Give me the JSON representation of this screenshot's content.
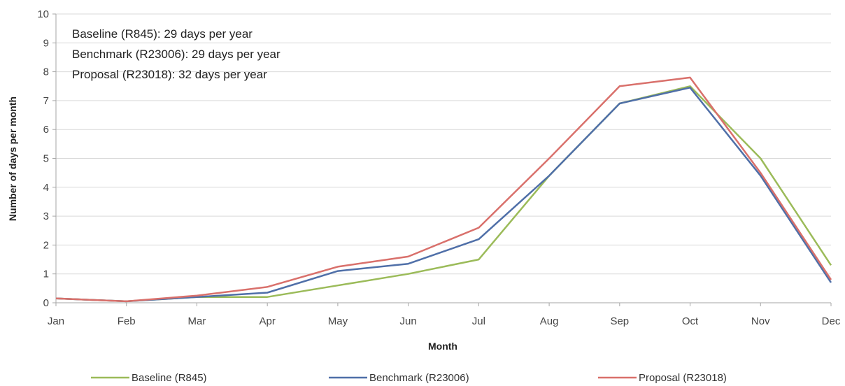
{
  "chart_data": {
    "type": "line",
    "xlabel": "Month",
    "ylabel": "Number of days per month",
    "ylim": [
      0,
      10
    ],
    "yticks": [
      0,
      1,
      2,
      3,
      4,
      5,
      6,
      7,
      8,
      9,
      10
    ],
    "categories": [
      "Jan",
      "Feb",
      "Mar",
      "Apr",
      "May",
      "Jun",
      "Jul",
      "Aug",
      "Sep",
      "Oct",
      "Nov",
      "Dec"
    ],
    "grid": "horizontal",
    "legend_position": "bottom",
    "annotations": [
      "Baseline (R845): 29 days per year",
      "Benchmark (R23006): 29 days per year",
      "Proposal (R23018): 32 days per year"
    ],
    "series": [
      {
        "name": "Baseline (R845)",
        "color": "#9bbb59",
        "values": [
          0.15,
          0.05,
          0.2,
          0.2,
          0.6,
          1.0,
          1.5,
          4.4,
          6.9,
          7.5,
          5.0,
          1.3
        ]
      },
      {
        "name": "Benchmark (R23006)",
        "color": "#4f6fa8",
        "values": [
          0.15,
          0.05,
          0.2,
          0.35,
          1.1,
          1.35,
          2.2,
          4.4,
          6.9,
          7.45,
          4.4,
          0.7
        ]
      },
      {
        "name": "Proposal (R23018)",
        "color": "#d9706b",
        "values": [
          0.15,
          0.05,
          0.25,
          0.55,
          1.25,
          1.6,
          2.6,
          5.0,
          7.5,
          7.8,
          4.5,
          0.8
        ]
      }
    ]
  }
}
